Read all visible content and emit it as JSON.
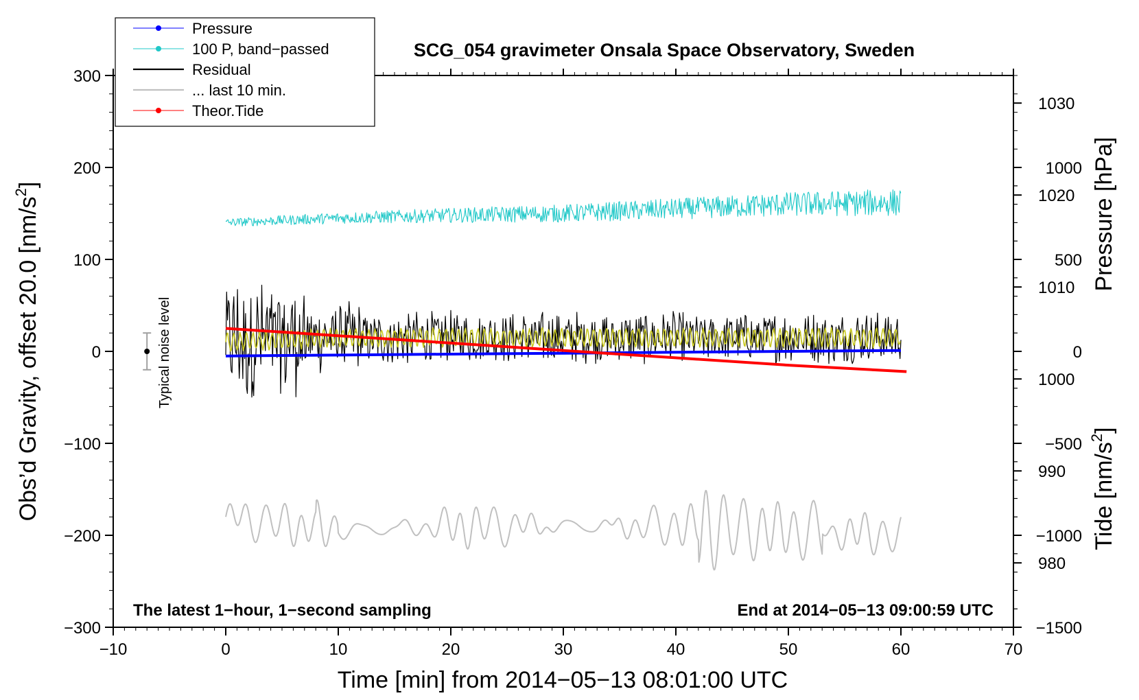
{
  "chart_data": {
    "type": "line",
    "title": "SCG_054 gravimeter Onsala Space Observatory, Sweden",
    "xlabel": "Time [min] from 2014−05−13 08:01:00 UTC",
    "ylabel_left": "Obs’d Gravity, offset 20.0 [nm/s",
    "ylabel_left_sup": "2",
    "ylabel_left_end": "]",
    "ylabel_right_pressure": "Pressure [hPa]",
    "ylabel_right_tide": "Tide [nm/s",
    "ylabel_right_tide_sup": "2",
    "ylabel_right_tide_end": "]",
    "xlim": [
      -10,
      70
    ],
    "ylim": [
      -300,
      300
    ],
    "pressure_ylim": [
      973,
      1033
    ],
    "tide_ylim": [
      -1500,
      1500
    ],
    "x_ticks": [
      "−10",
      "0",
      "10",
      "20",
      "30",
      "40",
      "50",
      "60",
      "70"
    ],
    "y_ticks": [
      "300",
      "200",
      "100",
      "0",
      "−100",
      "−200",
      "−300"
    ],
    "pressure_ticks": [
      "1030",
      "1020",
      "1010",
      "1000",
      "990",
      "980"
    ],
    "tide_ticks": [
      "1000",
      "500",
      "0",
      "−500",
      "−1000",
      "−1500"
    ],
    "annotation_left": "The latest 1−hour, 1−second sampling",
    "annotation_right": "End at 2014−05−13 09:00:59 UTC",
    "noise_label": "Typical noise level",
    "noise_bar": {
      "x": -7,
      "center": 0,
      "half_range": 20
    },
    "legend": [
      {
        "name": "Pressure",
        "color": "#0000ff",
        "marker": true
      },
      {
        "name": "100 P, band−passed",
        "color": "#20c8c8",
        "marker": true
      },
      {
        "name": "Residual",
        "color": "#000000",
        "marker": false
      },
      {
        "name": "... last 10 min.",
        "color": "#c0c0c0",
        "marker": false
      },
      {
        "name": "Theor.Tide",
        "color": "#ff0000",
        "marker": true
      }
    ],
    "colors": {
      "pressure": "#0000ff",
      "bandpassed": "#20c8c8",
      "residual": "#000000",
      "last10": "#c0c0c0",
      "tide": "#ff0000",
      "highlight": "#c8c820"
    },
    "series": [
      {
        "name": "Pressure",
        "axis": "pressure",
        "x": [
          0,
          10,
          20,
          30,
          40,
          50,
          60
        ],
        "values": [
          1002.5,
          1002.6,
          1002.7,
          1002.8,
          1002.9,
          1003.0,
          1003.1
        ]
      },
      {
        "name": "100 P, band−passed",
        "axis": "left",
        "x": [
          0,
          10,
          20,
          30,
          40,
          50,
          60
        ],
        "values": [
          140,
          145,
          148,
          150,
          155,
          160,
          162
        ]
      },
      {
        "name": "Residual",
        "axis": "left",
        "x": [
          0,
          10,
          20,
          30,
          40,
          50,
          60
        ],
        "values": [
          10,
          15,
          15,
          15,
          15,
          15,
          15
        ]
      },
      {
        "name": "... last 10 min.",
        "axis": "left",
        "x": [
          0,
          10,
          20,
          30,
          40,
          50,
          60
        ],
        "values": [
          -180,
          -195,
          -190,
          -190,
          -190,
          -195,
          -200
        ]
      },
      {
        "name": "Theor.Tide",
        "axis": "tide",
        "x": [
          0,
          10,
          20,
          30,
          40,
          50,
          60.5
        ],
        "values": [
          125,
          85,
          45,
          5,
          -35,
          -75,
          -110
        ]
      }
    ]
  }
}
